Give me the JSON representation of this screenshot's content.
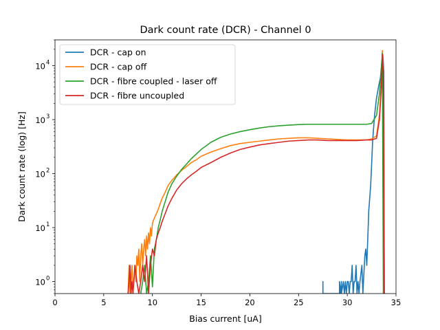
{
  "chart_data": {
    "type": "line",
    "title": "Dark count rate (DCR) - Channel 0",
    "xlabel": "Bias current [uA]",
    "ylabel": "Dark count rate (log) [Hz]",
    "xlim": [
      0,
      35
    ],
    "ylim": [
      0.6,
      30000
    ],
    "yscale": "log",
    "grid": false,
    "legend_placement": "upper-left",
    "x_ticks": [
      0,
      5,
      10,
      15,
      20,
      25,
      30,
      35
    ],
    "x_tick_labels": [
      "0",
      "5",
      "10",
      "15",
      "20",
      "25",
      "30",
      "35"
    ],
    "y_ticks": [
      1,
      10,
      100,
      1000,
      10000
    ],
    "y_tick_labels": [
      "10",
      "10",
      "10",
      "10",
      "10"
    ],
    "y_tick_exponents": [
      "0",
      "1",
      "2",
      "3",
      "4"
    ],
    "series": [
      {
        "name": "DCR - cap on",
        "color": "#1f77b4",
        "x": [
          27.5,
          27.5,
          27.5,
          29.2,
          29.2,
          29.3,
          29.4,
          29.4,
          29.6,
          29.7,
          29.8,
          29.9,
          30.0,
          30.1,
          30.2,
          30.3,
          30.4,
          30.5,
          30.6,
          30.7,
          30.8,
          30.9,
          31.0,
          31.1,
          31.2,
          31.3,
          31.5,
          31.6,
          31.8,
          31.9,
          32.0,
          32.1,
          32.2,
          32.4,
          32.5,
          32.6,
          32.8,
          33.0,
          33.2,
          33.4,
          33.55,
          33.65,
          33.75,
          33.8
        ],
        "y": [
          0.6,
          1.0,
          0.6,
          0.6,
          1.0,
          0.6,
          1.0,
          0.6,
          1.0,
          0.6,
          1.0,
          0.6,
          1.0,
          1.0,
          0.6,
          1.0,
          1.0,
          2.0,
          0.6,
          1.0,
          1.0,
          2.0,
          0.6,
          1.0,
          0.6,
          1.0,
          2.0,
          0.6,
          3.0,
          4.0,
          2.0,
          6.0,
          20,
          60,
          150,
          400,
          1200,
          2500,
          4000,
          6000,
          12000,
          16000,
          8000,
          0.6
        ]
      },
      {
        "name": "DCR - cap off",
        "color": "#ff7f0e",
        "x": [
          7.5,
          7.6,
          7.7,
          7.8,
          7.9,
          8.0,
          8.1,
          8.2,
          8.3,
          8.4,
          8.5,
          8.6,
          8.7,
          8.8,
          8.9,
          9.0,
          9.1,
          9.2,
          9.3,
          9.4,
          9.5,
          9.6,
          9.7,
          9.8,
          9.9,
          10.0,
          10.2,
          10.4,
          10.6,
          10.8,
          11.0,
          11.3,
          11.6,
          12.0,
          12.5,
          13.0,
          13.5,
          14.0,
          14.5,
          15.0,
          16.0,
          17.0,
          18.0,
          19.0,
          20.0,
          21.0,
          22.0,
          23.0,
          24.0,
          25.0,
          26.0,
          27.0,
          28.0,
          29.0,
          30.0,
          31.0,
          32.0,
          32.5,
          33.0,
          33.3,
          33.5,
          33.6,
          33.7,
          33.8
        ],
        "y": [
          0.6,
          2.0,
          0.6,
          1.0,
          2.0,
          0.6,
          1.0,
          2.0,
          1.0,
          3.0,
          2.0,
          4.0,
          1.0,
          3.0,
          5.0,
          2.0,
          4.0,
          6.0,
          3.0,
          7.0,
          4.0,
          8.0,
          5.0,
          10,
          7.0,
          12,
          15,
          18,
          22,
          28,
          35,
          45,
          60,
          75,
          95,
          115,
          135,
          160,
          180,
          210,
          250,
          290,
          330,
          360,
          380,
          400,
          420,
          440,
          450,
          460,
          460,
          450,
          440,
          430,
          420,
          420,
          420,
          440,
          500,
          1200,
          5000,
          19000,
          9000,
          0.6
        ]
      },
      {
        "name": "DCR - fibre coupled - laser off",
        "color": "#2ca02c",
        "x": [
          8.8,
          9.0,
          9.2,
          9.4,
          9.6,
          9.8,
          10.0,
          10.2,
          10.4,
          10.6,
          10.8,
          11.0,
          11.3,
          11.6,
          12.0,
          12.5,
          13.0,
          13.5,
          14.0,
          14.5,
          15.0,
          16.0,
          17.0,
          18.0,
          19.0,
          20.0,
          21.0,
          22.0,
          23.0,
          24.0,
          25.0,
          26.0,
          27.0,
          28.0,
          29.0,
          30.0,
          31.0,
          32.0,
          32.5,
          33.0,
          33.3,
          33.5,
          33.6,
          33.7
        ],
        "y": [
          0.6,
          1.0,
          2.0,
          0.6,
          1.0,
          3.0,
          0.8,
          4.0,
          6.0,
          10,
          14,
          20,
          30,
          45,
          65,
          90,
          120,
          150,
          190,
          230,
          280,
          380,
          470,
          540,
          600,
          650,
          700,
          740,
          770,
          790,
          810,
          820,
          820,
          820,
          820,
          820,
          820,
          820,
          850,
          1200,
          3000,
          9000,
          17000,
          0.6
        ]
      },
      {
        "name": "DCR - fibre uncoupled",
        "color": "#d62728",
        "x": [
          7.5,
          7.6,
          7.7,
          7.8,
          7.9,
          8.0,
          8.2,
          8.4,
          8.6,
          8.8,
          9.0,
          9.2,
          9.4,
          9.6,
          9.8,
          10.0,
          10.2,
          10.4,
          10.6,
          10.8,
          11.0,
          11.3,
          11.6,
          12.0,
          12.5,
          13.0,
          13.5,
          14.0,
          14.5,
          15.0,
          16.0,
          17.0,
          18.0,
          19.0,
          20.0,
          21.0,
          22.0,
          23.0,
          24.0,
          25.0,
          26.0,
          27.0,
          28.0,
          29.0,
          30.0,
          31.0,
          32.0,
          32.5,
          33.0,
          33.3,
          33.5,
          33.6,
          33.7,
          33.8
        ],
        "y": [
          0.6,
          1.0,
          2.0,
          0.6,
          1.0,
          0.6,
          2.0,
          1.0,
          0.6,
          1.0,
          2.0,
          1.0,
          3.0,
          0.6,
          2.0,
          4.0,
          3.0,
          6.0,
          8.0,
          10,
          13,
          18,
          25,
          35,
          50,
          65,
          80,
          95,
          110,
          130,
          160,
          200,
          240,
          280,
          310,
          340,
          360,
          380,
          400,
          410,
          420,
          420,
          410,
          410,
          410,
          410,
          420,
          420,
          450,
          1000,
          4000,
          16000,
          7000,
          0.6
        ]
      }
    ]
  }
}
